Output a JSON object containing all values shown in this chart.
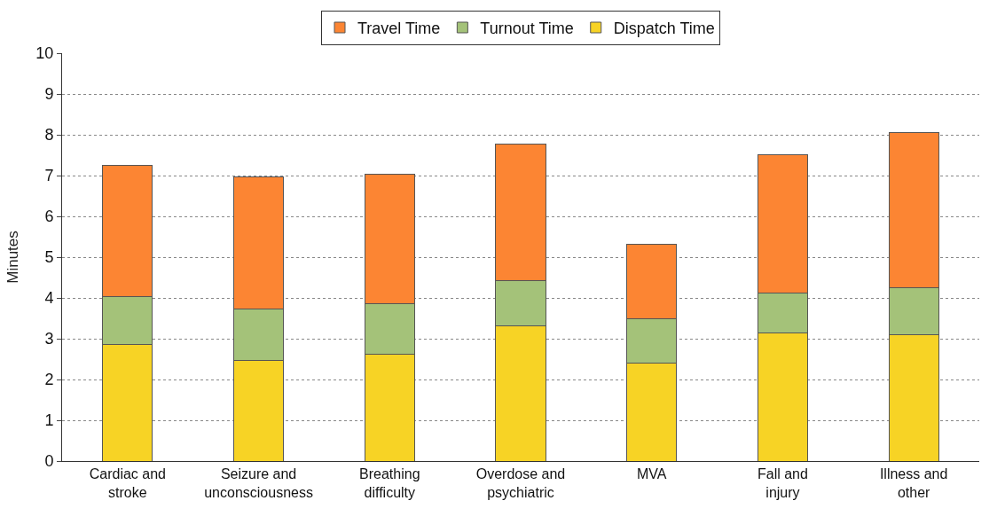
{
  "chart_data": {
    "type": "bar",
    "stacked": true,
    "ylabel": "Minutes",
    "categories": [
      "Cardiac and stroke",
      "Seizure and unconsciousness",
      "Breathing difficulty",
      "Overdose and psychiatric",
      "MVA",
      "Fall and injury",
      "Illness and other"
    ],
    "series": [
      {
        "name": "Dispatch Time",
        "color": "#f7d325",
        "values": [
          2.85,
          2.47,
          2.62,
          3.32,
          2.4,
          3.14,
          3.09
        ]
      },
      {
        "name": "Turnout Time",
        "color": "#a4c279",
        "values": [
          1.19,
          1.25,
          1.24,
          1.1,
          1.1,
          0.99,
          1.17
        ]
      },
      {
        "name": "Travel Time",
        "color": "#fc8533",
        "values": [
          3.2,
          3.25,
          3.18,
          3.36,
          1.81,
          3.38,
          3.79
        ]
      }
    ],
    "ylim": [
      0,
      10
    ],
    "yticks": [
      0,
      1,
      2,
      3,
      4,
      5,
      6,
      7,
      8,
      9,
      10
    ],
    "grid": "y",
    "legend": "top"
  }
}
